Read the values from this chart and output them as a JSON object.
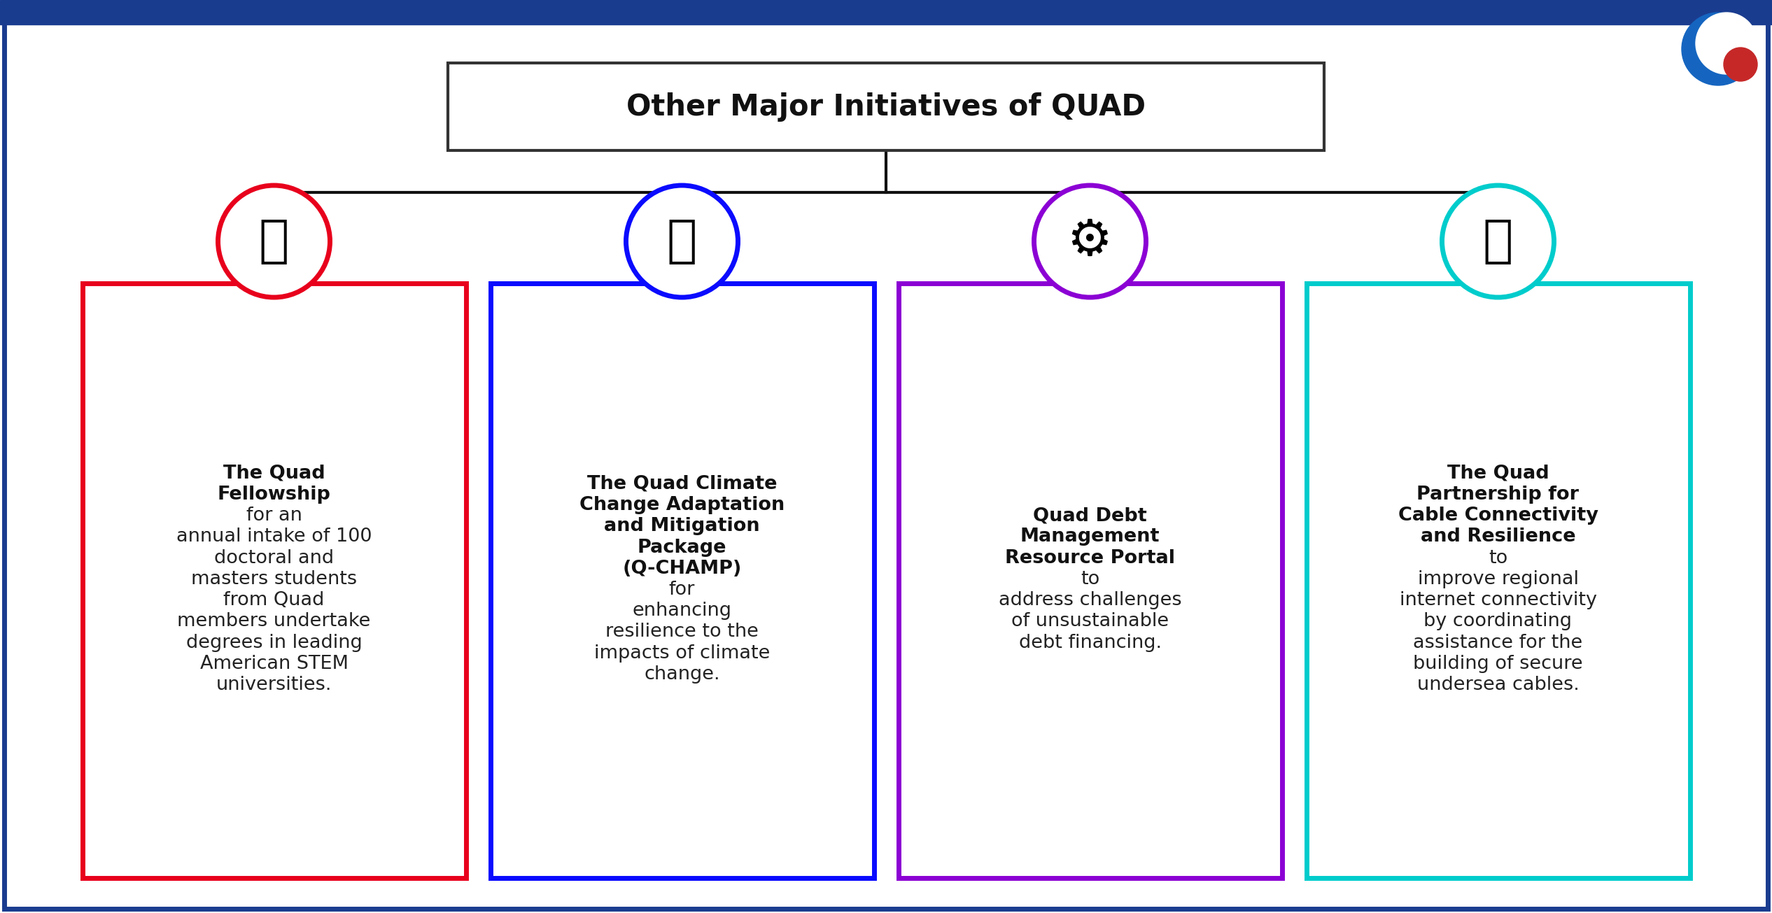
{
  "title": "Other Major Initiatives of QUAD",
  "background_color": "#ffffff",
  "border_color": "#1a3c8f",
  "top_bar_color": "#1a3c8f",
  "boxes": [
    {
      "color": "#e8001c",
      "title_bold": "The Quad\nFellowship",
      "title_rest": " for an\nannual intake of 100\ndoctoral and\nmasters students\nfrom Quad\nmembers undertake\ndegrees in leading\nAmerican STEM\nuniversities.",
      "icon_symbol": "fellowship"
    },
    {
      "color": "#0a0aff",
      "title_bold": "The Quad Climate\nChange Adaptation\nand Mitigation\nPackage\n(Q-CHAMP)",
      "title_rest": " for\nenhancing\nresilience to the\nimpacts of climate\nchange.",
      "icon_symbol": "climate"
    },
    {
      "color": "#8b00d4",
      "title_bold": "Quad Debt\nManagement\nResource Portal",
      "title_rest": " to\naddress challenges\nof unsustainable\ndebt financing.",
      "icon_symbol": "debt"
    },
    {
      "color": "#00cccc",
      "title_bold": "The Quad\nPartnership for\nCable Connectivity\nand Resilience",
      "title_rest": " to\nimprove regional\ninternet connectivity\nby coordinating\nassistance for the\nbuilding of secure\nundersea cables.",
      "icon_symbol": "cable"
    }
  ],
  "connector_color": "#111111",
  "text_color": "#222222",
  "logo_blue": "#1565c0",
  "logo_red": "#c62828",
  "title_fontsize": 30,
  "body_fontsize": 19.5,
  "bold_fontsize": 19.5
}
